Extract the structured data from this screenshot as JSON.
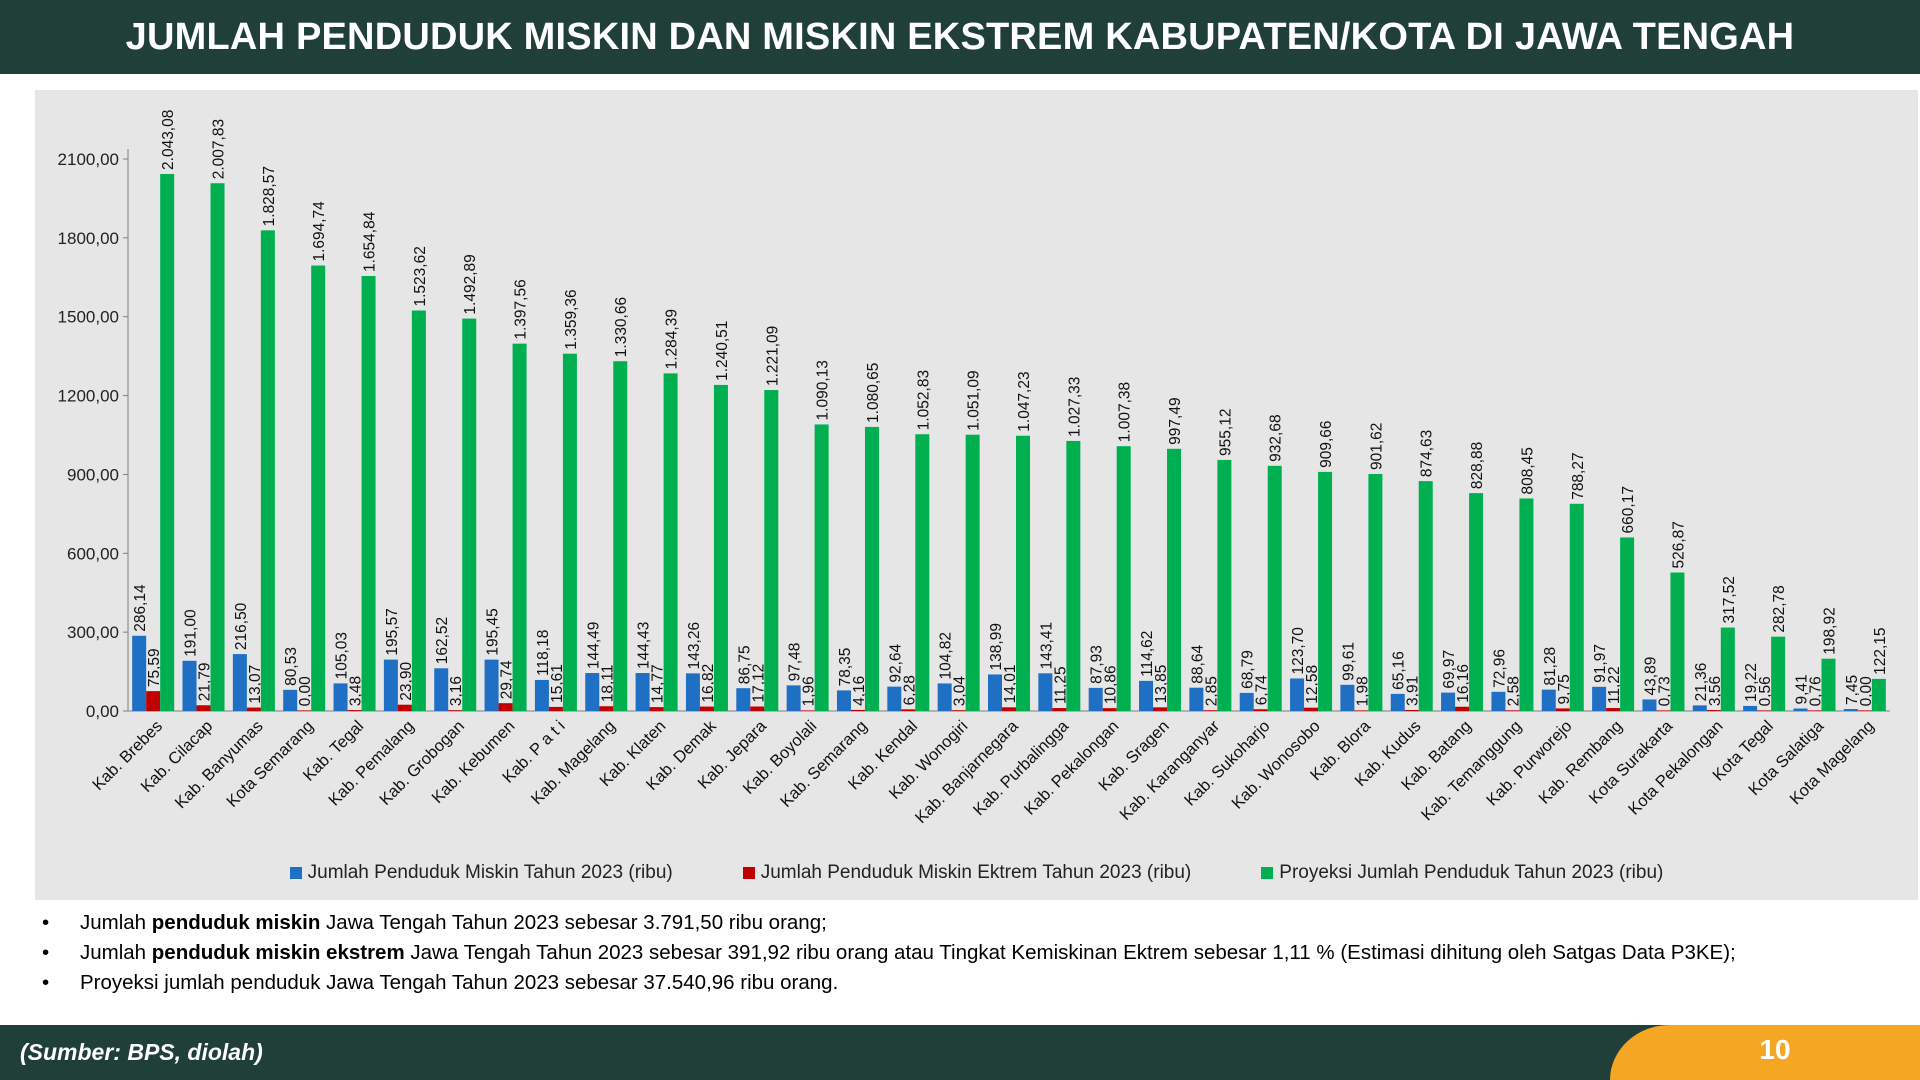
{
  "title": "JUMLAH PENDUDUK MISKIN DAN MISKIN EKSTREM KABUPATEN/KOTA DI JAWA TENGAH",
  "chart_data": {
    "type": "bar",
    "ylim": [
      0,
      2100
    ],
    "y_ticks": [
      0,
      300,
      600,
      900,
      1200,
      1500,
      1800,
      2100
    ],
    "y_tick_labels": [
      "0,00",
      "300,00",
      "600,00",
      "900,00",
      "1200,00",
      "1500,00",
      "1800,00",
      "2100,00"
    ],
    "categories": [
      "Kab. Brebes",
      "Kab. Cilacap",
      "Kab. Banyumas",
      "Kota Semarang",
      "Kab. Tegal",
      "Kab. Pemalang",
      "Kab. Grobogan",
      "Kab. Kebumen",
      "Kab. P a t i",
      "Kab. Magelang",
      "Kab. Klaten",
      "Kab. Demak",
      "Kab. Jepara",
      "Kab. Boyolali",
      "Kab. Semarang",
      "Kab. Kendal",
      "Kab. Wonogiri",
      "Kab. Banjarnegara",
      "Kab. Purbalingga",
      "Kab. Pekalongan",
      "Kab. Sragen",
      "Kab. Karanganyar",
      "Kab. Sukoharjo",
      "Kab. Wonosobo",
      "Kab. Blora",
      "Kab. Kudus",
      "Kab. Batang",
      "Kab. Temanggung",
      "Kab. Purworejo",
      "Kab. Rembang",
      "Kota Surakarta",
      "Kota Pekalongan",
      "Kota Tegal",
      "Kota Salatiga",
      "Kota Magelang"
    ],
    "series": [
      {
        "name": "Jumlah Penduduk Miskin Tahun 2023 (ribu)",
        "color": "#1f6fc5",
        "values": [
          286.14,
          191.0,
          216.5,
          80.53,
          105.03,
          195.57,
          162.52,
          195.45,
          118.18,
          144.49,
          144.43,
          143.26,
          86.75,
          97.48,
          78.35,
          92.64,
          104.82,
          138.99,
          143.41,
          87.93,
          114.62,
          88.64,
          68.79,
          123.7,
          99.61,
          65.16,
          69.97,
          72.96,
          81.28,
          91.97,
          43.89,
          21.36,
          19.22,
          9.41,
          7.45
        ],
        "labels": [
          "286,14",
          "191,00",
          "216,50",
          "80,53",
          "105,03",
          "195,57",
          "162,52",
          "195,45",
          "118,18",
          "144,49",
          "144,43",
          "143,26",
          "86,75",
          "97,48",
          "78,35",
          "92,64",
          "104,82",
          "138,99",
          "143,41",
          "87,93",
          "114,62",
          "88,64",
          "68,79",
          "123,70",
          "99,61",
          "65,16",
          "69,97",
          "72,96",
          "81,28",
          "91,97",
          "43,89",
          "21,36",
          "19,22",
          "9,41",
          "7,45"
        ]
      },
      {
        "name": "Jumlah Penduduk Miskin Ektrem Tahun 2023 (ribu)",
        "color": "#c00000",
        "values": [
          75.59,
          21.79,
          13.07,
          0.0,
          3.48,
          23.9,
          3.16,
          29.74,
          15.61,
          18.11,
          14.77,
          16.82,
          17.12,
          1.96,
          4.16,
          6.28,
          3.04,
          14.01,
          11.25,
          10.86,
          13.85,
          2.85,
          6.74,
          12.58,
          1.98,
          3.91,
          16.16,
          2.58,
          9.75,
          11.22,
          0.73,
          3.56,
          0.56,
          0.76,
          0.0
        ],
        "labels": [
          "75,59",
          "21,79",
          "13,07",
          "0,00",
          "3,48",
          "23,90",
          "3,16",
          "29,74",
          "15,61",
          "18,11",
          "14,77",
          "16,82",
          "17,12",
          "1,96",
          "4,16",
          "6,28",
          "3,04",
          "14,01",
          "11,25",
          "10,86",
          "13,85",
          "2,85",
          "6,74",
          "12,58",
          "1,98",
          "3,91",
          "16,16",
          "2,58",
          "9,75",
          "11,22",
          "0,73",
          "3,56",
          "0,56",
          "0,76",
          "0,00"
        ]
      },
      {
        "name": "Proyeksi Jumlah Penduduk Tahun 2023 (ribu)",
        "color": "#00b050",
        "values": [
          2043.08,
          2007.83,
          1828.57,
          1694.74,
          1654.84,
          1523.62,
          1492.89,
          1397.56,
          1359.36,
          1330.66,
          1284.39,
          1240.51,
          1221.09,
          1090.13,
          1080.65,
          1052.83,
          1051.09,
          1047.23,
          1027.33,
          1007.38,
          997.49,
          955.12,
          932.68,
          909.66,
          901.62,
          874.63,
          828.88,
          808.45,
          788.27,
          660.17,
          526.87,
          317.52,
          282.78,
          198.92,
          122.15
        ],
        "labels": [
          "2.043,08",
          "2.007,83",
          "1.828,57",
          "1.694,74",
          "1.654,84",
          "1.523,62",
          "1.492,89",
          "1.397,56",
          "1.359,36",
          "1.330,66",
          "1.284,39",
          "1.240,51",
          "1.221,09",
          "1.090,13",
          "1.080,65",
          "1.052,83",
          "1.051,09",
          "1.047,23",
          "1.027,33",
          "1.007,38",
          "997,49",
          "955,12",
          "932,68",
          "909,66",
          "901,62",
          "874,63",
          "828,88",
          "808,45",
          "788,27",
          "660,17",
          "526,87",
          "317,52",
          "282,78",
          "198,92",
          "122,15"
        ]
      }
    ],
    "legend_position": "bottom"
  },
  "bullets": [
    {
      "pre": "Jumlah ",
      "bold": "penduduk miskin",
      "post": " Jawa Tengah Tahun 2023 sebesar 3.791,50 ribu orang;"
    },
    {
      "pre": "Jumlah ",
      "bold": "penduduk miskin ekstrem",
      "post": " Jawa Tengah Tahun 2023 sebesar 391,92 ribu orang atau Tingkat Kemiskinan Ektrem sebesar 1,11 %  (Estimasi dihitung oleh Satgas Data P3KE);"
    },
    {
      "pre": "Proyeksi jumlah penduduk Jawa Tengah Tahun 2023 sebesar 37.540,96 ribu orang.",
      "bold": "",
      "post": ""
    }
  ],
  "footer": {
    "source": "(Sumber: BPS, diolah)",
    "page_number": "10"
  }
}
